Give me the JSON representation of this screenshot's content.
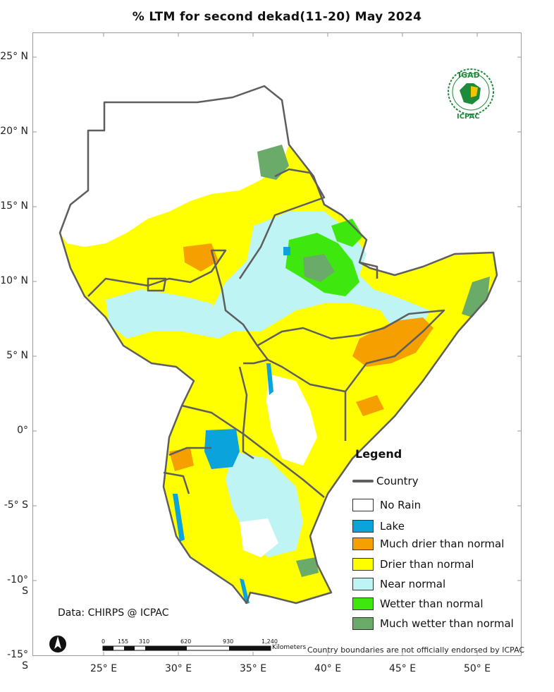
{
  "title": "% LTM  for second dekad(11-20) May 2024",
  "lat_labels": [
    "25° N",
    "20° N",
    "15° N",
    "10° N",
    "5° N",
    "0°",
    "-5° S",
    "-10° S",
    "-15° S"
  ],
  "lon_labels": [
    "25° E",
    "30° E",
    "35° E",
    "40° E",
    "45° E",
    "50° E"
  ],
  "legend": {
    "title": "Legend",
    "country_label": "Country",
    "items": [
      {
        "label": "No Rain",
        "color": "#ffffff"
      },
      {
        "label": "Lake",
        "color": "#0aa3dc"
      },
      {
        "label": "Much drier than normal",
        "color": "#f5a000"
      },
      {
        "label": "Drier than normal",
        "color": "#ffff00"
      },
      {
        "label": "Near normal",
        "color": "#bff4f4"
      },
      {
        "label": "Wetter than normal",
        "color": "#3ee80e"
      },
      {
        "label": "Much wetter than normal",
        "color": "#6aab6a"
      }
    ]
  },
  "source": "Data: CHIRPS @ ICPAC",
  "disclaimer": "Country boundaries are not officially endorsed by ICPAC",
  "scale": {
    "ticks": [
      "0",
      "155",
      "310",
      "620",
      "930",
      "1,240"
    ],
    "unit": "Kilometers"
  },
  "logo": {
    "top": "IGAD",
    "bottom": "ICPAC"
  },
  "colors": {
    "border": "#5e5e5e",
    "accent": "#1e8b3a"
  }
}
